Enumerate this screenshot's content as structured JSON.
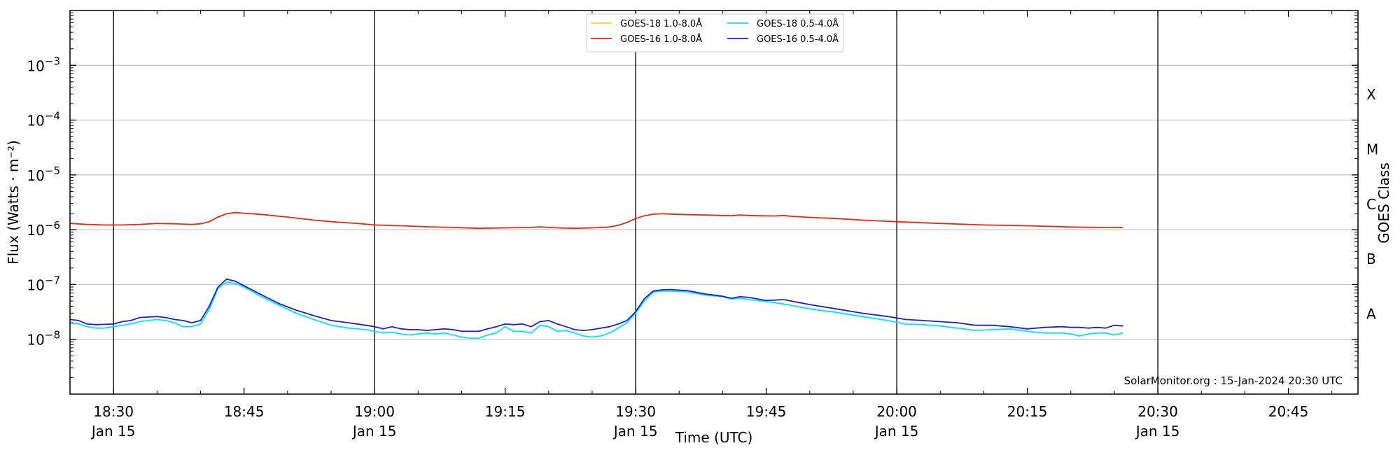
{
  "chart_data": {
    "type": "line",
    "xlabel": "Time (UTC)",
    "ylabel": "Flux (Watts · m⁻²)",
    "right_label": "GOES Class",
    "yscale": "log",
    "ylim": [
      1e-09,
      0.01
    ],
    "xlim": [
      "2024-01-15 18:25",
      "2024-01-15 20:53"
    ],
    "grid": "horizontal",
    "legend_position": "top-center",
    "credit": "SolarMonitor.org : 15-Jan-2024 20:30 UTC",
    "y_ticks": [
      {
        "value": 1e-08,
        "base": "10",
        "exp": "−8"
      },
      {
        "value": 1e-07,
        "base": "10",
        "exp": "−7"
      },
      {
        "value": 1e-06,
        "base": "10",
        "exp": "−6"
      },
      {
        "value": 1e-05,
        "base": "10",
        "exp": "−5"
      },
      {
        "value": 0.0001,
        "base": "10",
        "exp": "−4"
      },
      {
        "value": 0.001,
        "base": "10",
        "exp": "−3"
      }
    ],
    "x_ticks": [
      {
        "time": "18:30",
        "date": "Jan 15"
      },
      {
        "time": "18:45",
        "date": ""
      },
      {
        "time": "19:00",
        "date": "Jan 15"
      },
      {
        "time": "19:15",
        "date": ""
      },
      {
        "time": "19:30",
        "date": "Jan 15"
      },
      {
        "time": "19:45",
        "date": ""
      },
      {
        "time": "20:00",
        "date": "Jan 15"
      },
      {
        "time": "20:15",
        "date": ""
      },
      {
        "time": "20:30",
        "date": "Jan 15"
      },
      {
        "time": "20:45",
        "date": ""
      }
    ],
    "vertical_lines": [
      "18:30",
      "19:00",
      "19:30",
      "20:00",
      "20:30"
    ],
    "goes_classes": [
      {
        "label": "A",
        "value": 3e-08
      },
      {
        "label": "B",
        "value": 3e-07
      },
      {
        "label": "C",
        "value": 3e-06
      },
      {
        "label": "M",
        "value": 3e-05
      },
      {
        "label": "X",
        "value": 0.0003
      }
    ],
    "series": [
      {
        "name": "GOES-18 1.0-8.0Å",
        "color": "#FFD700",
        "x": [],
        "y": []
      },
      {
        "name": "GOES-16 1.0-8.0Å",
        "color": "#E8280F",
        "x": [
          "18:25",
          "18:27",
          "18:29",
          "18:31",
          "18:33",
          "18:35",
          "18:37",
          "18:39",
          "18:40",
          "18:41",
          "18:42",
          "18:43",
          "18:44",
          "18:45",
          "18:47",
          "18:50",
          "18:53",
          "18:55",
          "18:58",
          "19:00",
          "19:03",
          "19:06",
          "19:09",
          "19:12",
          "19:15",
          "19:18",
          "19:19",
          "19:20",
          "19:21",
          "19:23",
          "19:25",
          "19:27",
          "19:28",
          "19:29",
          "19:30",
          "19:31",
          "19:32",
          "19:33",
          "19:35",
          "19:38",
          "19:41",
          "19:42",
          "19:43",
          "19:44",
          "19:46",
          "19:47",
          "19:48",
          "19:50",
          "19:53",
          "19:56",
          "20:00",
          "20:05",
          "20:10",
          "20:15",
          "20:20",
          "20:23",
          "20:26"
        ],
        "y": [
          1.3e-06,
          1.25e-06,
          1.22e-06,
          1.22e-06,
          1.25e-06,
          1.3e-06,
          1.28e-06,
          1.25e-06,
          1.28e-06,
          1.4e-06,
          1.7e-06,
          1.95e-06,
          2.05e-06,
          2e-06,
          1.9e-06,
          1.7e-06,
          1.5e-06,
          1.4e-06,
          1.3e-06,
          1.22e-06,
          1.18e-06,
          1.13e-06,
          1.1e-06,
          1.06e-06,
          1.08e-06,
          1.1e-06,
          1.13e-06,
          1.1e-06,
          1.08e-06,
          1.06e-06,
          1.08e-06,
          1.12e-06,
          1.2e-06,
          1.35e-06,
          1.6e-06,
          1.8e-06,
          1.92e-06,
          1.95e-06,
          1.9e-06,
          1.85e-06,
          1.8e-06,
          1.85e-06,
          1.82e-06,
          1.8e-06,
          1.78e-06,
          1.82e-06,
          1.75e-06,
          1.68e-06,
          1.6e-06,
          1.5e-06,
          1.4e-06,
          1.3e-06,
          1.22e-06,
          1.18e-06,
          1.12e-06,
          1.1e-06,
          1.1e-06
        ]
      },
      {
        "name": "GOES-18 0.5-4.0Å",
        "color": "#00E5FF",
        "x": [
          "18:25",
          "18:26",
          "18:27",
          "18:28",
          "18:29",
          "18:30",
          "18:32",
          "18:33",
          "18:35",
          "18:36",
          "18:37",
          "18:38",
          "18:39",
          "18:40",
          "18:41",
          "18:42",
          "18:43",
          "18:44",
          "18:45",
          "18:47",
          "18:49",
          "18:51",
          "18:53",
          "18:55",
          "18:57",
          "18:59",
          "19:00",
          "19:01",
          "19:02",
          "19:03",
          "19:04",
          "19:05",
          "19:06",
          "19:07",
          "19:08",
          "19:09",
          "19:10",
          "19:11",
          "19:12",
          "19:13",
          "19:14",
          "19:15",
          "19:16",
          "19:17",
          "19:18",
          "19:19",
          "19:20",
          "19:21",
          "19:22",
          "19:23",
          "19:24",
          "19:25",
          "19:26",
          "19:27",
          "19:28",
          "19:29",
          "19:30",
          "19:31",
          "19:32",
          "19:33",
          "19:34",
          "19:36",
          "19:38",
          "19:40",
          "19:41",
          "19:42",
          "19:43",
          "19:45",
          "19:47",
          "19:50",
          "19:53",
          "19:56",
          "19:59",
          "20:01",
          "20:03",
          "20:05",
          "20:07",
          "20:09",
          "20:11",
          "20:13",
          "20:15",
          "20:17",
          "20:19",
          "20:20",
          "20:21",
          "20:22",
          "20:23",
          "20:24",
          "20:25",
          "20:26"
        ],
        "y": [
          2e-08,
          1.9e-08,
          1.7e-08,
          1.6e-08,
          1.6e-08,
          1.7e-08,
          1.9e-08,
          2.1e-08,
          2.3e-08,
          2.2e-08,
          2e-08,
          1.7e-08,
          1.7e-08,
          1.9e-08,
          3.5e-08,
          8.5e-08,
          1.1e-07,
          1.05e-07,
          9e-08,
          6e-08,
          4.2e-08,
          3e-08,
          2.3e-08,
          1.8e-08,
          1.6e-08,
          1.5e-08,
          1.4e-08,
          1.3e-08,
          1.35e-08,
          1.25e-08,
          1.2e-08,
          1.25e-08,
          1.3e-08,
          1.25e-08,
          1.3e-08,
          1.2e-08,
          1.1e-08,
          1.05e-08,
          1.05e-08,
          1.2e-08,
          1.3e-08,
          1.7e-08,
          1.4e-08,
          1.4e-08,
          1.3e-08,
          1.8e-08,
          1.7e-08,
          1.4e-08,
          1.45e-08,
          1.3e-08,
          1.15e-08,
          1.1e-08,
          1.15e-08,
          1.3e-08,
          1.6e-08,
          2e-08,
          3e-08,
          5e-08,
          7.2e-08,
          7.6e-08,
          7.6e-08,
          7.3e-08,
          6.4e-08,
          6e-08,
          5.4e-08,
          5.6e-08,
          5.3e-08,
          4.9e-08,
          4.4e-08,
          3.6e-08,
          3.1e-08,
          2.6e-08,
          2.2e-08,
          1.9e-08,
          1.85e-08,
          1.75e-08,
          1.6e-08,
          1.45e-08,
          1.5e-08,
          1.55e-08,
          1.4e-08,
          1.3e-08,
          1.3e-08,
          1.25e-08,
          1.15e-08,
          1.25e-08,
          1.3e-08,
          1.3e-08,
          1.2e-08,
          1.3e-08
        ]
      },
      {
        "name": "GOES-16 0.5-4.0Å",
        "color": "#1F1FD6",
        "x": [
          "18:25",
          "18:26",
          "18:27",
          "18:28",
          "18:30",
          "18:31",
          "18:32",
          "18:33",
          "18:35",
          "18:36",
          "18:37",
          "18:38",
          "18:39",
          "18:40",
          "18:41",
          "18:42",
          "18:43",
          "18:44",
          "18:45",
          "18:47",
          "18:49",
          "18:51",
          "18:53",
          "18:55",
          "18:57",
          "18:59",
          "19:00",
          "19:01",
          "19:02",
          "19:03",
          "19:04",
          "19:05",
          "19:06",
          "19:07",
          "19:08",
          "19:09",
          "19:10",
          "19:11",
          "19:12",
          "19:13",
          "19:14",
          "19:15",
          "19:16",
          "19:17",
          "19:18",
          "19:19",
          "19:20",
          "19:21",
          "19:22",
          "19:23",
          "19:24",
          "19:25",
          "19:26",
          "19:27",
          "19:28",
          "19:29",
          "19:30",
          "19:31",
          "19:32",
          "19:33",
          "19:34",
          "19:36",
          "19:38",
          "19:40",
          "19:41",
          "19:42",
          "19:43",
          "19:45",
          "19:47",
          "19:50",
          "19:53",
          "19:56",
          "19:59",
          "20:01",
          "20:03",
          "20:05",
          "20:07",
          "20:09",
          "20:11",
          "20:13",
          "20:15",
          "20:17",
          "20:19",
          "20:20",
          "20:21",
          "20:22",
          "20:23",
          "20:24",
          "20:25",
          "20:26"
        ],
        "y": [
          2.3e-08,
          2.2e-08,
          1.9e-08,
          1.85e-08,
          1.9e-08,
          2.1e-08,
          2.2e-08,
          2.5e-08,
          2.6e-08,
          2.5e-08,
          2.3e-08,
          2.2e-08,
          2e-08,
          2.2e-08,
          4e-08,
          9e-08,
          1.25e-07,
          1.15e-07,
          9.5e-08,
          6.5e-08,
          4.5e-08,
          3.4e-08,
          2.7e-08,
          2.2e-08,
          2e-08,
          1.8e-08,
          1.7e-08,
          1.55e-08,
          1.7e-08,
          1.55e-08,
          1.5e-08,
          1.5e-08,
          1.45e-08,
          1.5e-08,
          1.55e-08,
          1.5e-08,
          1.4e-08,
          1.4e-08,
          1.4e-08,
          1.55e-08,
          1.7e-08,
          1.9e-08,
          1.85e-08,
          1.9e-08,
          1.7e-08,
          2.1e-08,
          2.2e-08,
          1.9e-08,
          1.7e-08,
          1.5e-08,
          1.45e-08,
          1.5e-08,
          1.6e-08,
          1.7e-08,
          1.9e-08,
          2.2e-08,
          3.2e-08,
          5.5e-08,
          7.6e-08,
          8e-08,
          8.1e-08,
          7.7e-08,
          6.7e-08,
          6.1e-08,
          5.6e-08,
          6e-08,
          5.8e-08,
          5.1e-08,
          5.3e-08,
          4.3e-08,
          3.6e-08,
          3e-08,
          2.6e-08,
          2.3e-08,
          2.2e-08,
          2.1e-08,
          2e-08,
          1.8e-08,
          1.8e-08,
          1.7e-08,
          1.55e-08,
          1.65e-08,
          1.7e-08,
          1.65e-08,
          1.65e-08,
          1.6e-08,
          1.65e-08,
          1.6e-08,
          1.8e-08,
          1.75e-08
        ]
      }
    ]
  }
}
